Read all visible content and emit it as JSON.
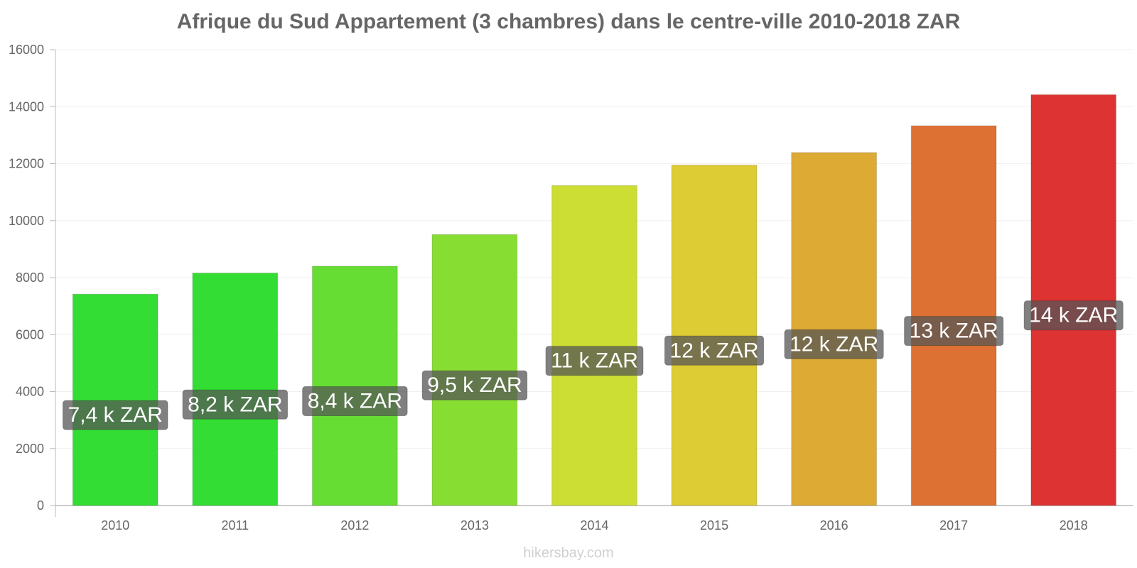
{
  "chart_data": {
    "type": "bar",
    "title": "Afrique du Sud Appartement (3 chambres) dans le centre-ville 2010-2018 ZAR",
    "xlabel": "",
    "ylabel": "",
    "categories": [
      "2010",
      "2011",
      "2012",
      "2013",
      "2014",
      "2015",
      "2016",
      "2017",
      "2018"
    ],
    "values": [
      7420,
      8160,
      8400,
      9510,
      11230,
      11950,
      12390,
      13330,
      14420
    ],
    "data_labels": [
      "7,4 k ZAR",
      "8,2 k ZAR",
      "8,4 k ZAR",
      "9,5 k ZAR",
      "11 k ZAR",
      "12 k ZAR",
      "12 k ZAR",
      "13 k ZAR",
      "14 k ZAR"
    ],
    "ylim": [
      0,
      16000
    ],
    "yticks": [
      0,
      2000,
      4000,
      6000,
      8000,
      10000,
      12000,
      14000,
      16000
    ],
    "grid": true,
    "legend": "none",
    "bar_colors": [
      "#33dd33",
      "#33dd33",
      "#66dd33",
      "#88dd33",
      "#ccdd33",
      "#ddcc33",
      "#ddaa33",
      "#dd7033",
      "#dd3333"
    ],
    "label_box_color": "#555555"
  },
  "footer": {
    "credit": "hikersbay.com"
  }
}
